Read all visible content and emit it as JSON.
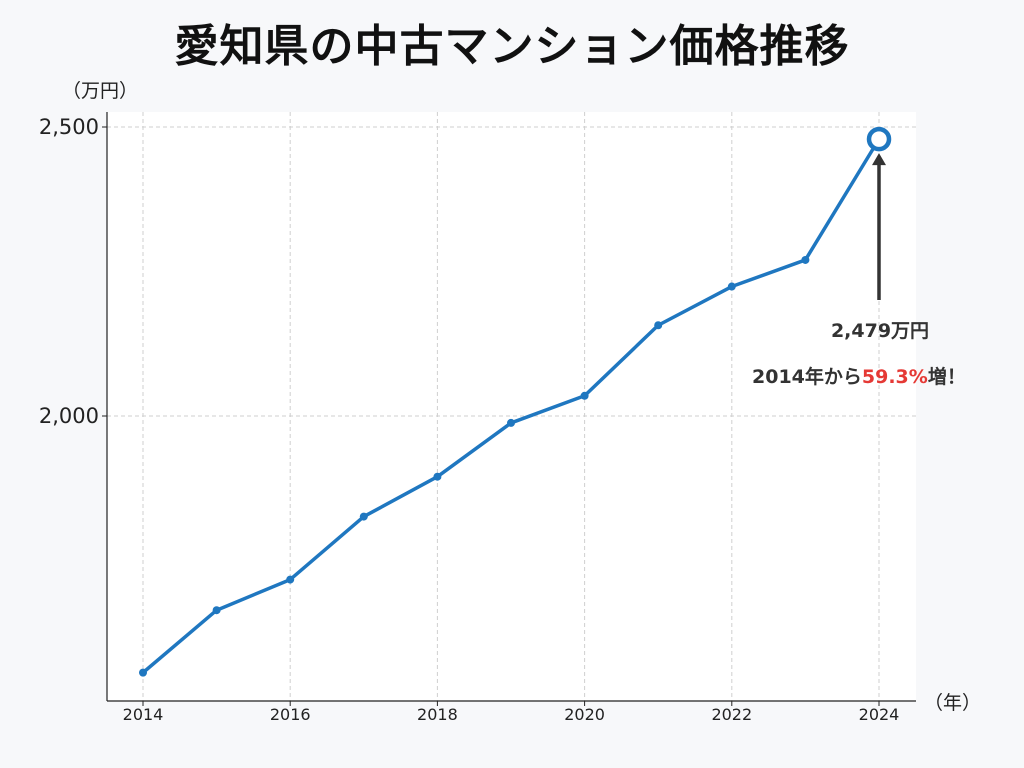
{
  "title": "愛知県の中古マンション価格推移",
  "y_unit": "（万円）",
  "x_unit": "（年）",
  "annotation": {
    "value_text": "2,479万円",
    "change_prefix": "2014年から",
    "change_highlight": "59.3%",
    "change_suffix": "増！"
  },
  "colors": {
    "line": "#1f77c0",
    "highlight": "#e53935",
    "arrow": "#333333"
  },
  "chart_data": {
    "type": "line",
    "title": "愛知県の中古マンション価格推移",
    "x": [
      2014,
      2015,
      2016,
      2017,
      2018,
      2019,
      2020,
      2021,
      2022,
      2023,
      2024
    ],
    "series": [
      {
        "values": [
          1556,
          1664,
          1717,
          1826,
          1895,
          1988,
          2035,
          2157,
          2224,
          2270,
          2479
        ]
      }
    ],
    "xlim": [
      2014,
      2024
    ],
    "ylim": [
      1500,
      2500
    ],
    "x_ticks": [
      2014,
      2016,
      2018,
      2020,
      2022,
      2024
    ],
    "y_ticks": [
      2000,
      2500
    ],
    "y_tick_labels": [
      "2,000",
      "2,500"
    ],
    "grid": true,
    "highlight_point": 2024
  }
}
